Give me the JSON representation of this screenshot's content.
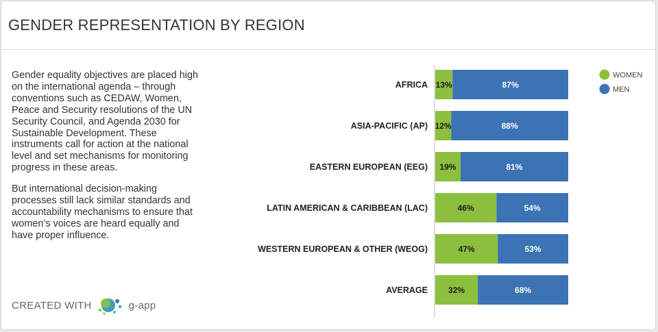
{
  "title": "GENDER REPRESENTATION BY REGION",
  "description": [
    "Gender equality objectives are placed high on the international agenda – through conventions such as CEDAW, Women, Peace and Security resolutions of the UN Security Council, and Agenda 2030 for Sustainable Development. These instruments call for action at the national level and set mechanisms for monitoring progress in these areas.",
    "But international decision-making processes still lack similar standards and accountability mechanisms to ensure that women’s voices are heard equally and have proper influence."
  ],
  "footer": {
    "created_with": "CREATED WITH",
    "brand": "g-app"
  },
  "chart_data": {
    "type": "bar",
    "orientation": "horizontal",
    "stacked": "100%",
    "categories": [
      "AFRICA",
      "ASIA-PACIFIC (AP)",
      "EASTERN EUROPEAN (EEG)",
      "LATIN AMERICAN & CARIBBEAN (LAC)",
      "WESTERN EUROPEAN & OTHER (WEOG)",
      "AVERAGE"
    ],
    "series": [
      {
        "name": "WOMEN",
        "color": "#8dbf3f",
        "values": [
          13,
          12,
          19,
          46,
          47,
          32
        ],
        "labels": [
          "13%",
          "12%",
          "19%",
          "46%",
          "47%",
          "32%"
        ]
      },
      {
        "name": "MEN",
        "color": "#3b73b5",
        "values": [
          87,
          88,
          81,
          54,
          53,
          68
        ],
        "labels": [
          "87%",
          "88%",
          "81%",
          "54%",
          "53%",
          "68%"
        ]
      }
    ],
    "xlim": [
      0,
      100
    ],
    "grid": false,
    "legend_position": "top-right"
  }
}
